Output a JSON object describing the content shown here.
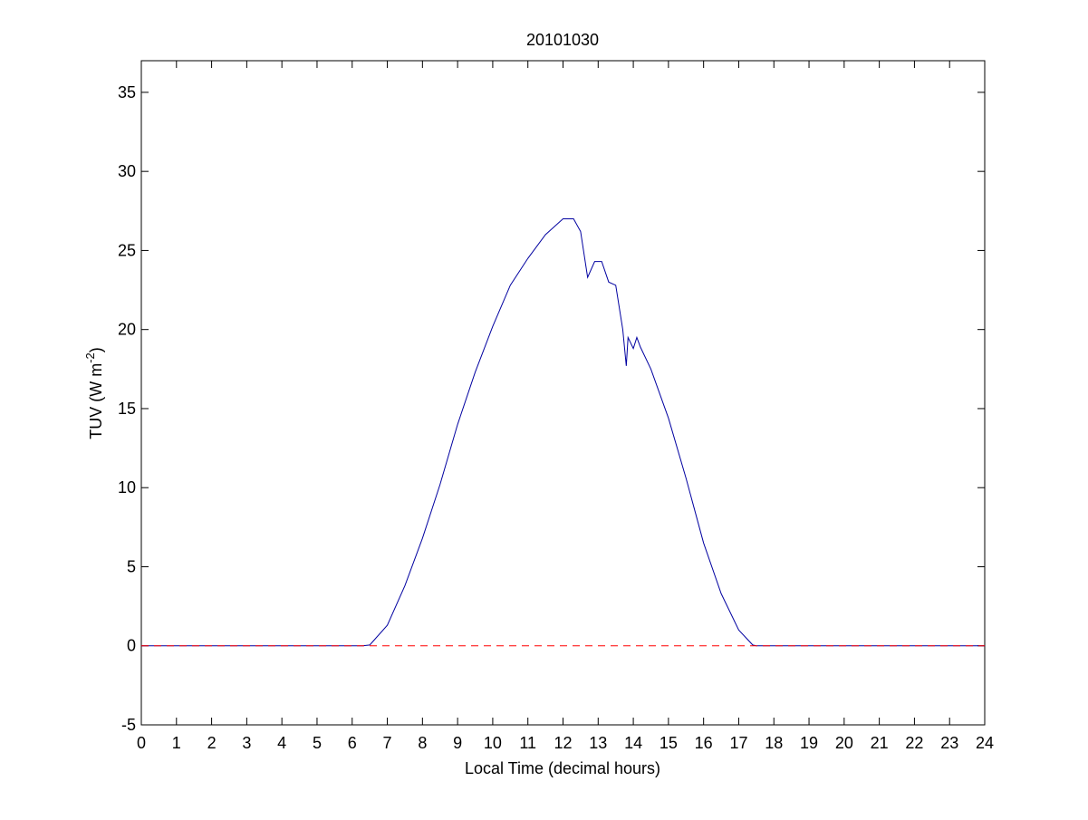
{
  "chart_data": {
    "type": "line",
    "title": "20101030",
    "xlabel": "Local Time (decimal hours)",
    "ylabel": "TUV (W m",
    "ylabel_superscript": "-2",
    "ylabel_suffix": ")",
    "xlim": [
      0,
      24
    ],
    "xticks": [
      0,
      1,
      2,
      3,
      4,
      5,
      6,
      7,
      8,
      9,
      10,
      11,
      12,
      13,
      14,
      15,
      16,
      17,
      18,
      19,
      20,
      21,
      22,
      23,
      24
    ],
    "ylim": [
      -5,
      37
    ],
    "yticks": [
      -5,
      0,
      5,
      10,
      15,
      20,
      25,
      30,
      35
    ],
    "grid": false,
    "series": [
      {
        "color": "#0000a0",
        "dash": false,
        "x": [
          0,
          6.3,
          6.5,
          7,
          7.5,
          8,
          8.5,
          9,
          9.5,
          10,
          10.5,
          11,
          11.5,
          12,
          12.3,
          12.5,
          12.7,
          12.9,
          13.1,
          13.3,
          13.5,
          13.7,
          13.8,
          13.85,
          14,
          14.1,
          14.2,
          14.5,
          15,
          15.5,
          16,
          16.5,
          17,
          17.4,
          17.5,
          24
        ],
        "values": [
          0,
          0,
          0.05,
          1.3,
          3.8,
          6.8,
          10.2,
          14,
          17.3,
          20.2,
          22.8,
          24.5,
          26,
          27,
          27,
          26.2,
          23.3,
          24.3,
          24.3,
          23,
          22.8,
          20,
          17.7,
          19.5,
          18.8,
          19.5,
          18.9,
          17.5,
          14.4,
          10.6,
          6.5,
          3.3,
          1,
          0.05,
          0,
          0
        ]
      },
      {
        "color": "#ff0000",
        "dash": true,
        "x": [
          0,
          24
        ],
        "values": [
          0,
          0
        ]
      }
    ]
  }
}
